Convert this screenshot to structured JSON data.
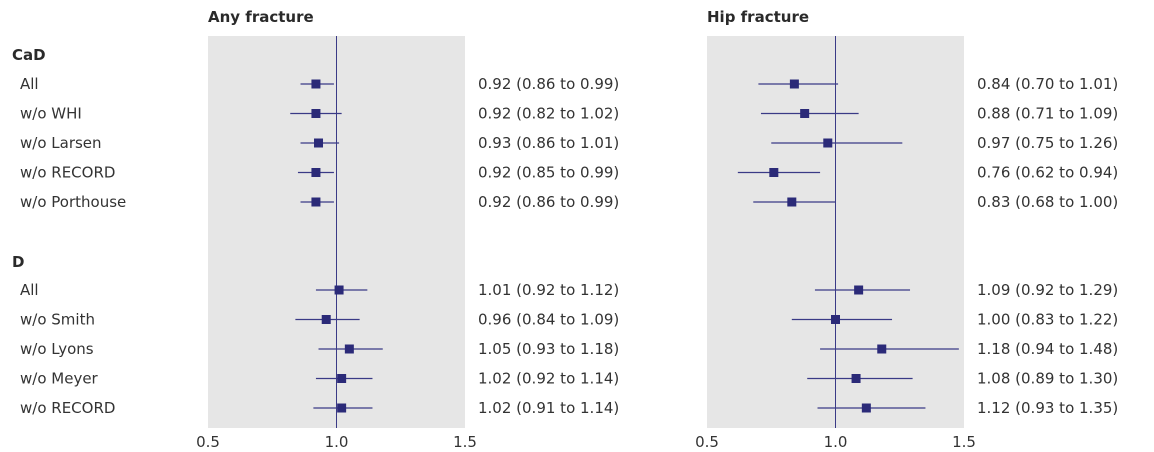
{
  "chart_data": {
    "type": "forest",
    "x_ticks": [
      "0.5",
      "1.0",
      "1.5"
    ],
    "xlim": [
      0.5,
      1.5
    ],
    "reference_line": 1.0,
    "colors": {
      "panel_background": "#e6e6e6",
      "marker": "#2b2a78",
      "line": "#3a3a86"
    },
    "groups": [
      {
        "label": "CaD",
        "rows": [
          {
            "label": "All",
            "any": {
              "est": 0.92,
              "lo": 0.86,
              "hi": 0.99,
              "text": "0.92 (0.86 to 0.99)"
            },
            "hip": {
              "est": 0.84,
              "lo": 0.7,
              "hi": 1.01,
              "text": "0.84 (0.70 to 1.01)"
            }
          },
          {
            "label": "w/o WHI",
            "any": {
              "est": 0.92,
              "lo": 0.82,
              "hi": 1.02,
              "text": "0.92 (0.82 to 1.02)"
            },
            "hip": {
              "est": 0.88,
              "lo": 0.71,
              "hi": 1.09,
              "text": "0.88 (0.71 to 1.09)"
            }
          },
          {
            "label": "w/o Larsen",
            "any": {
              "est": 0.93,
              "lo": 0.86,
              "hi": 1.01,
              "text": "0.93 (0.86 to 1.01)"
            },
            "hip": {
              "est": 0.97,
              "lo": 0.75,
              "hi": 1.26,
              "text": "0.97 (0.75 to 1.26)"
            }
          },
          {
            "label": "w/o RECORD",
            "any": {
              "est": 0.92,
              "lo": 0.85,
              "hi": 0.99,
              "text": "0.92 (0.85 to 0.99)"
            },
            "hip": {
              "est": 0.76,
              "lo": 0.62,
              "hi": 0.94,
              "text": "0.76 (0.62 to 0.94)"
            }
          },
          {
            "label": "w/o Porthouse",
            "any": {
              "est": 0.92,
              "lo": 0.86,
              "hi": 0.99,
              "text": "0.92 (0.86 to 0.99)"
            },
            "hip": {
              "est": 0.83,
              "lo": 0.68,
              "hi": 1.0,
              "text": "0.83 (0.68 to 1.00)"
            }
          }
        ]
      },
      {
        "label": "D",
        "rows": [
          {
            "label": "All",
            "any": {
              "est": 1.01,
              "lo": 0.92,
              "hi": 1.12,
              "text": "1.01 (0.92 to 1.12)"
            },
            "hip": {
              "est": 1.09,
              "lo": 0.92,
              "hi": 1.29,
              "text": "1.09 (0.92 to 1.29)"
            }
          },
          {
            "label": "w/o Smith",
            "any": {
              "est": 0.96,
              "lo": 0.84,
              "hi": 1.09,
              "text": "0.96 (0.84 to 1.09)"
            },
            "hip": {
              "est": 1.0,
              "lo": 0.83,
              "hi": 1.22,
              "text": "1.00 (0.83 to 1.22)"
            }
          },
          {
            "label": "w/o Lyons",
            "any": {
              "est": 1.05,
              "lo": 0.93,
              "hi": 1.18,
              "text": "1.05 (0.93 to 1.18)"
            },
            "hip": {
              "est": 1.18,
              "lo": 0.94,
              "hi": 1.48,
              "text": "1.18 (0.94 to 1.48)"
            }
          },
          {
            "label": "w/o Meyer",
            "any": {
              "est": 1.02,
              "lo": 0.92,
              "hi": 1.14,
              "text": "1.02 (0.92 to 1.14)"
            },
            "hip": {
              "est": 1.08,
              "lo": 0.89,
              "hi": 1.3,
              "text": "1.08 (0.89 to 1.30)"
            }
          },
          {
            "label": "w/o RECORD",
            "any": {
              "est": 1.02,
              "lo": 0.91,
              "hi": 1.14,
              "text": "1.02 (0.91 to 1.14)"
            },
            "hip": {
              "est": 1.12,
              "lo": 0.93,
              "hi": 1.35,
              "text": "1.12 (0.93 to 1.35)"
            }
          }
        ]
      }
    ],
    "panels": [
      {
        "key": "any",
        "title": "Any fracture"
      },
      {
        "key": "hip",
        "title": "Hip fracture"
      }
    ]
  }
}
